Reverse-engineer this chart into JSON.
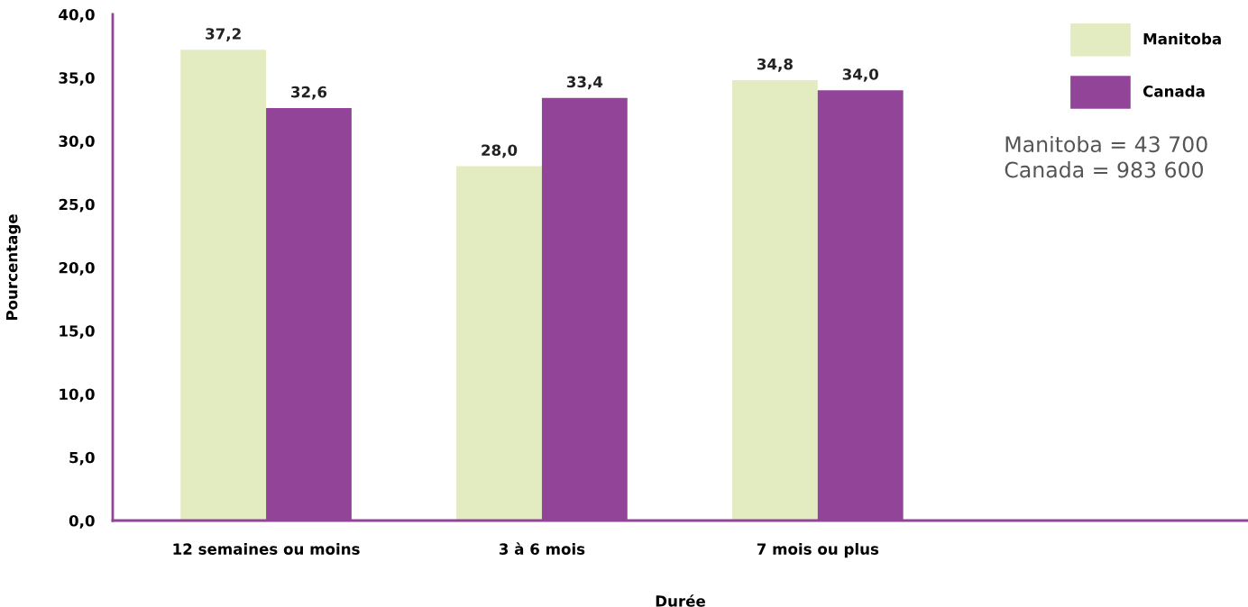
{
  "chart_data": {
    "type": "bar",
    "xlabel": "Durée",
    "ylabel": "Pourcentage",
    "categories": [
      "12 semaines ou moins",
      "3 à 6 mois",
      "7 mois ou plus"
    ],
    "series": [
      {
        "name": "Manitoba",
        "color": "#e3ecc0",
        "values": [
          37.2,
          28.0,
          34.8
        ],
        "value_labels": [
          "37,2",
          "28,0",
          "34,8"
        ]
      },
      {
        "name": "Canada",
        "color": "#924598",
        "values": [
          32.6,
          33.4,
          34.0
        ],
        "value_labels": [
          "32,6",
          "33,4",
          "34,0"
        ]
      }
    ],
    "ylim": [
      0,
      40
    ],
    "yticks": [
      {
        "value": 0,
        "label": "0,0"
      },
      {
        "value": 5,
        "label": "5,0"
      },
      {
        "value": 10,
        "label": "10,0"
      },
      {
        "value": 15,
        "label": "15,0"
      },
      {
        "value": 20,
        "label": "20,0"
      },
      {
        "value": 25,
        "label": "25,0"
      },
      {
        "value": 30,
        "label": "30,0"
      },
      {
        "value": 35,
        "label": "35,0"
      },
      {
        "value": 40,
        "label": "40,0"
      }
    ],
    "legend": "top right",
    "grid": false,
    "annotations": [
      "Manitoba = 43 700\nCanada = 983 600"
    ]
  }
}
